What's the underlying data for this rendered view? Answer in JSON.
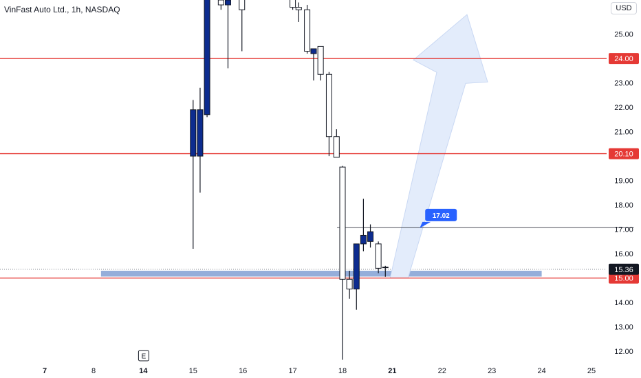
{
  "header": {
    "title": "VinFast Auto Ltd., 1h, NASDAQ",
    "currency": "USD"
  },
  "colors": {
    "level_line": "#e53935",
    "bull_candle": "#0d2c8f",
    "bear_candle": "#ffffff",
    "candle_outline": "#131722",
    "support_zone": "#8aa5d6",
    "callout": "#2962ff",
    "price_label_current": "#131722",
    "arrow_fill": "#e3ecfb"
  },
  "chart_data": {
    "type": "candlestick",
    "ylim": [
      11.55,
      26.4
    ],
    "y_ticks": [
      "25.00",
      "23.00",
      "22.00",
      "21.00",
      "19.00",
      "18.00",
      "17.00",
      "16.00",
      "14.00",
      "13.00",
      "12.00"
    ],
    "x_ticks": [
      {
        "label": "7",
        "x": -0.98,
        "bold": true
      },
      {
        "label": "8",
        "x": 0,
        "bold": false
      },
      {
        "label": "14",
        "x": 1,
        "bold": true
      },
      {
        "label": "15",
        "x": 2,
        "bold": false
      },
      {
        "label": "16",
        "x": 3,
        "bold": false
      },
      {
        "label": "17",
        "x": 4,
        "bold": false
      },
      {
        "label": "18",
        "x": 5,
        "bold": false
      },
      {
        "label": "21",
        "x": 6,
        "bold": true
      },
      {
        "label": "22",
        "x": 7,
        "bold": false
      },
      {
        "label": "23",
        "x": 8,
        "bold": false
      },
      {
        "label": "24",
        "x": 9,
        "bold": false
      },
      {
        "label": "25",
        "x": 10,
        "bold": false
      }
    ],
    "levels": [
      {
        "value": 24.0,
        "label": "24.00"
      },
      {
        "value": 20.1,
        "label": "20.10"
      },
      {
        "value": 15.0,
        "label": "15.00"
      }
    ],
    "current_price": {
      "value": 15.36,
      "label": "15.36"
    },
    "support_zone": {
      "from": 15.06,
      "to": 15.3,
      "x_start": 0.15,
      "x_end": 9.0
    },
    "horizontal_line": {
      "value": 17.07,
      "x_start": 4.89,
      "x_end": 10.85
    },
    "callout": {
      "label": "17.02",
      "value": 17.02,
      "x": 6.55
    },
    "earnings_marker": {
      "label": "E",
      "x": 1.0
    },
    "projection_arrow": {
      "x_start": 6.15,
      "x_end": 7.5,
      "y_start": 15.0,
      "y_end": 25.8
    },
    "candles": [
      {
        "x": 2.0,
        "o": 20.0,
        "h": 22.3,
        "l": 16.2,
        "c": 21.9
      },
      {
        "x": 2.14,
        "o": 20.0,
        "h": 22.8,
        "l": 18.5,
        "c": 21.9
      },
      {
        "x": 2.28,
        "o": 21.7,
        "h": 27.0,
        "l": 21.6,
        "c": 27.0
      },
      {
        "x": 2.56,
        "o": 26.4,
        "h": 27.0,
        "l": 26.0,
        "c": 26.2
      },
      {
        "x": 2.7,
        "o": 26.2,
        "h": 27.0,
        "l": 23.6,
        "c": 26.4
      },
      {
        "x": 2.98,
        "o": 26.5,
        "h": 27.0,
        "l": 24.3,
        "c": 26.0
      },
      {
        "x": 4.0,
        "o": 26.9,
        "h": 27.0,
        "l": 26.0,
        "c": 26.1
      },
      {
        "x": 4.12,
        "o": 26.1,
        "h": 26.3,
        "l": 25.5,
        "c": 26.0
      },
      {
        "x": 4.29,
        "o": 26.0,
        "h": 26.2,
        "l": 24.2,
        "c": 24.3
      },
      {
        "x": 4.42,
        "o": 24.2,
        "h": 24.4,
        "l": 23.1,
        "c": 24.4
      },
      {
        "x": 4.56,
        "o": 24.5,
        "h": 24.5,
        "l": 23.1,
        "c": 23.35
      },
      {
        "x": 4.73,
        "o": 23.35,
        "h": 23.45,
        "l": 20.0,
        "c": 20.8
      },
      {
        "x": 4.88,
        "o": 20.8,
        "h": 21.1,
        "l": 19.95,
        "c": 19.95
      },
      {
        "x": 5.0,
        "o": 19.55,
        "h": 19.6,
        "l": 11.65,
        "c": 14.95
      },
      {
        "x": 5.14,
        "o": 14.95,
        "h": 15.3,
        "l": 14.15,
        "c": 14.55
      },
      {
        "x": 5.28,
        "o": 14.55,
        "h": 16.4,
        "l": 13.7,
        "c": 16.4
      },
      {
        "x": 5.42,
        "o": 16.4,
        "h": 18.25,
        "l": 16.1,
        "c": 16.75
      },
      {
        "x": 5.56,
        "o": 16.5,
        "h": 17.2,
        "l": 16.25,
        "c": 16.9
      },
      {
        "x": 5.72,
        "o": 16.4,
        "h": 16.5,
        "l": 15.2,
        "c": 15.4
      },
      {
        "x": 5.86,
        "o": 15.45,
        "h": 15.5,
        "l": 15.05,
        "c": 15.45
      }
    ]
  }
}
